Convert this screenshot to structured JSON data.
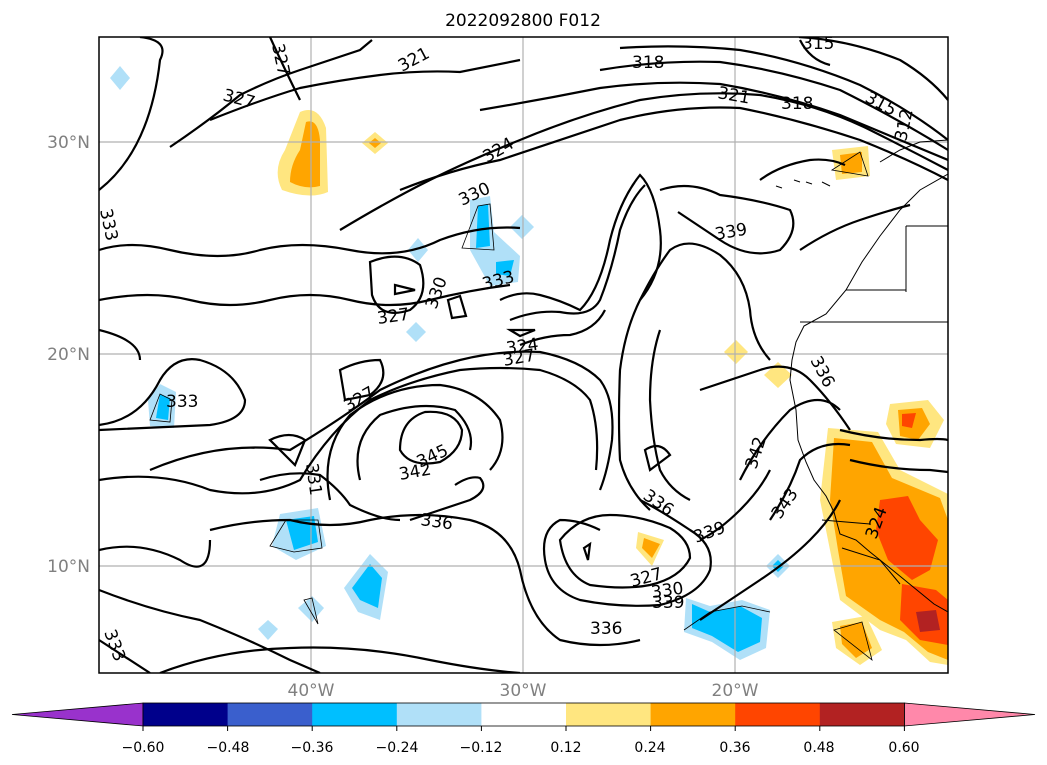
{
  "title": "2022092800 F012",
  "map": {
    "lat_ticks": [
      {
        "value": 30,
        "label": "30°N"
      },
      {
        "value": 20,
        "label": "20°N"
      },
      {
        "value": 10,
        "label": "10°N"
      }
    ],
    "lon_ticks": [
      {
        "value": -40,
        "label": "40°W"
      },
      {
        "value": -30,
        "label": "30°W"
      },
      {
        "value": -20,
        "label": "20°W"
      }
    ],
    "contour_labels": [
      "327",
      "321",
      "318",
      "315",
      "327",
      "321",
      "318",
      "315",
      "312",
      "324",
      "330",
      "333",
      "339",
      "333",
      "327",
      "330",
      "324",
      "327",
      "336",
      "333",
      "327",
      "345",
      "342",
      "331",
      "336",
      "336",
      "339",
      "342",
      "343",
      "324",
      "327",
      "330",
      "339",
      "336",
      "333"
    ],
    "colors": {
      "neg_strong": "#00bfff",
      "neg_weak": "#b0e0f8",
      "pos_weak": "#ffe680",
      "pos_mid": "#ffa500",
      "pos_strong": "#ff4500",
      "pos_max": "#b22222",
      "grid": "#b0b0b0"
    }
  },
  "colorbar": {
    "colors": [
      "#9932cc",
      "#00008b",
      "#3a5fcd",
      "#00bfff",
      "#b0e0f8",
      "#ffffff",
      "#ffe680",
      "#ffa500",
      "#ff4500",
      "#b22222",
      "#ff88aa"
    ],
    "tick_labels": [
      "−0.60",
      "−0.48",
      "−0.36",
      "−0.24",
      "−0.12",
      "0.12",
      "0.24",
      "0.36",
      "0.48",
      "0.60"
    ]
  }
}
